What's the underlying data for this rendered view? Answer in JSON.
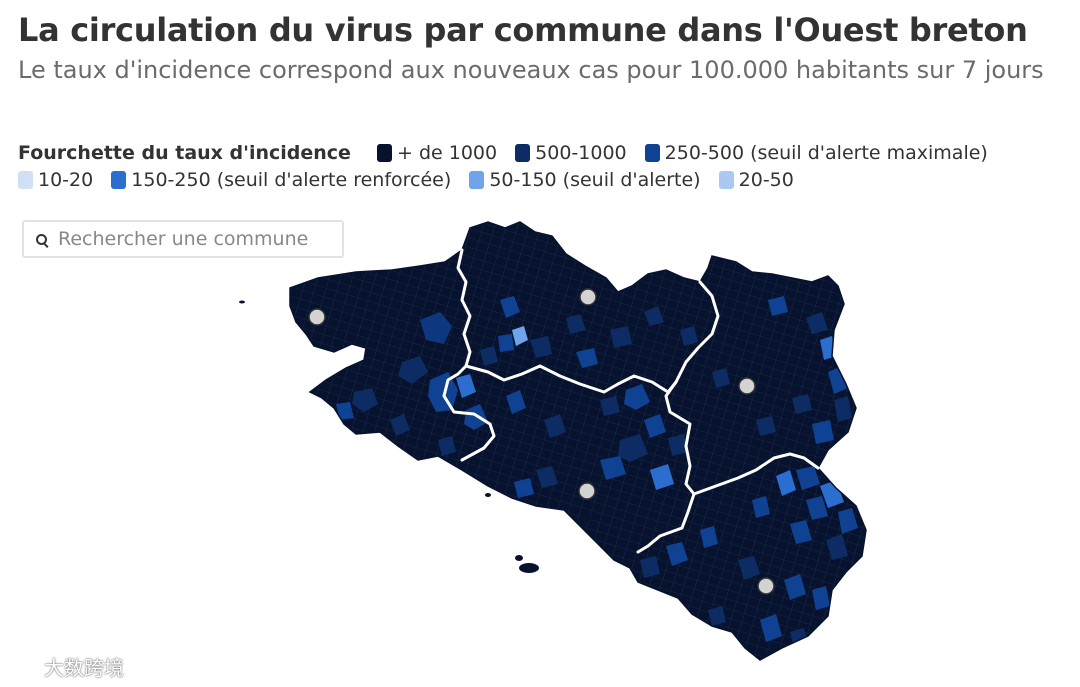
{
  "header": {
    "title": "La circulation du virus par commune dans l'Ouest breton",
    "subtitle": "Le taux d'incidence correspond aux nouveaux cas pour 100.000 habitants sur 7 jours"
  },
  "legend": {
    "title": "Fourchette du taux d'incidence",
    "items": [
      {
        "label": "+ de 1000",
        "color": "#07132e"
      },
      {
        "label": "500-1000",
        "color": "#0d2c63"
      },
      {
        "label": "250-500 (seuil d'alerte maximale)",
        "color": "#0f4293"
      },
      {
        "label": "10-20",
        "color": "#cfe0f5"
      },
      {
        "label": "150-250 (seuil d'alerte renforcée)",
        "color": "#2c6dd0"
      },
      {
        "label": "50-150 (seuil d'alerte)",
        "color": "#6fa3eb"
      },
      {
        "label": "20-50",
        "color": "#a9c8f3"
      }
    ]
  },
  "search": {
    "placeholder": "Rechercher une commune",
    "value": ""
  },
  "map": {
    "base_color": "#07132e",
    "boundary_color": "#ffffff",
    "city_marker_color": "#d3d3d3"
  },
  "watermark": {
    "text": "大数跨境"
  }
}
